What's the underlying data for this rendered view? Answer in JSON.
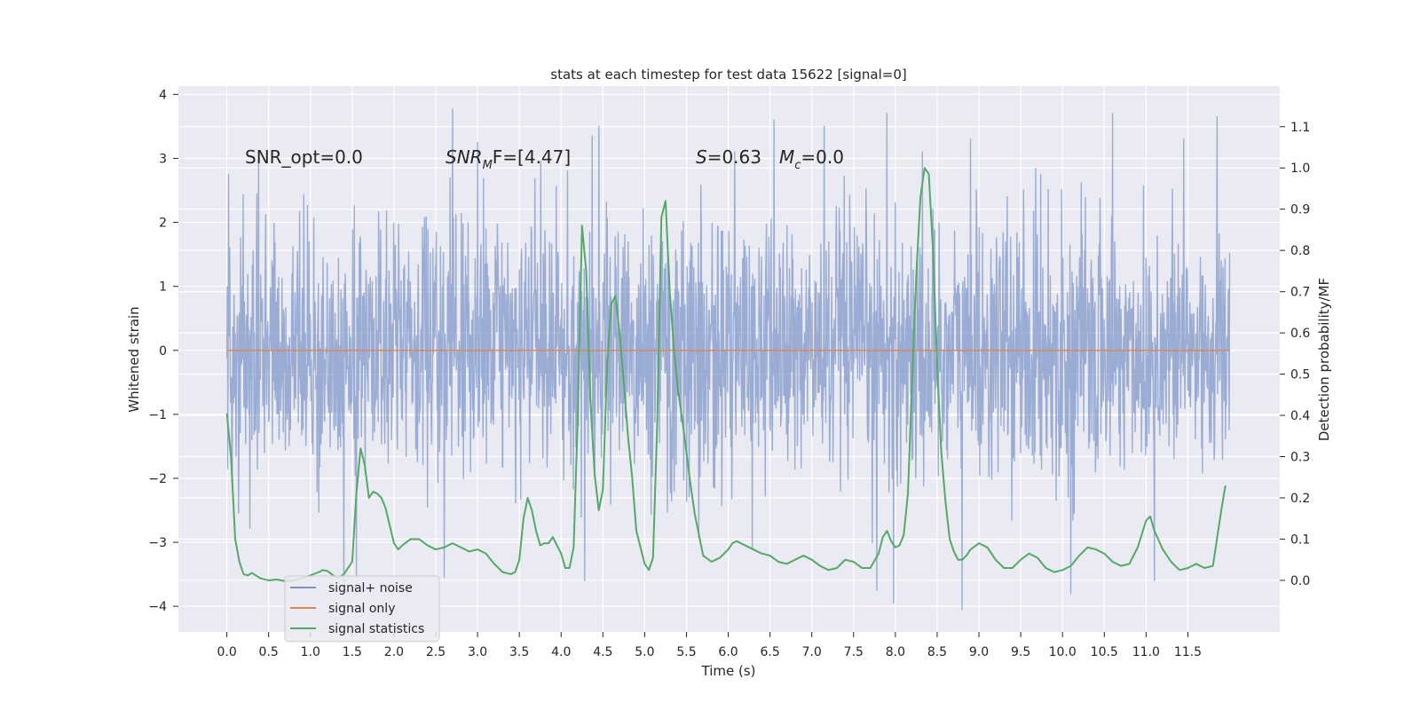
{
  "chart_data": {
    "type": "line",
    "title": "stats at each timestep for test data 15622 [signal=0]",
    "xlabel": "Time (s)",
    "ylabel": "Whitened strain",
    "y2label": "Detection probability/MF",
    "xlim": [
      -0.58,
      12.6
    ],
    "ylim": [
      -4.4,
      4.13
    ],
    "y2lim": [
      -0.125,
      1.1985
    ],
    "xticks": [
      "0.0",
      "0.5",
      "1.0",
      "1.5",
      "2.0",
      "2.5",
      "3.0",
      "3.5",
      "4.0",
      "4.5",
      "5.0",
      "5.5",
      "6.0",
      "6.5",
      "7.0",
      "7.5",
      "8.0",
      "8.5",
      "9.0",
      "9.5",
      "10.0",
      "10.5",
      "11.0",
      "11.5"
    ],
    "yticks": [
      "4",
      "3",
      "2",
      "1",
      "0",
      "−1",
      "−2",
      "−3",
      "−4"
    ],
    "y2ticks": [
      "1.1",
      "1.0",
      "0.9",
      "0.8",
      "0.7",
      "0.6",
      "0.5",
      "0.4",
      "0.3",
      "0.2",
      "0.1",
      "0.0"
    ],
    "grid": true,
    "legend_position": "lower-left",
    "annotations": {
      "snr_opt": "SNR_opt=0.0",
      "snr_mf_base": "SNR",
      "snr_mf_sub": "M",
      "snr_mf_rest": "F=[4.47]",
      "s_label": "S",
      "s_value": "=0.63",
      "mc_label": "M",
      "mc_sub": "c",
      "mc_value": "=0.0"
    },
    "series": [
      {
        "name": "signal+ noise",
        "color": "#7b94c6",
        "axis": "left",
        "style": "dense noise",
        "duration_s": 12.0,
        "notable_extremes": [
          {
            "t": 0.02,
            "v": 2.75
          },
          {
            "t": 0.38,
            "v": 2.95
          },
          {
            "t": 2.7,
            "v": 3.77
          },
          {
            "t": 3.0,
            "v": 3.25
          },
          {
            "t": 4.37,
            "v": 3.35
          },
          {
            "t": 4.45,
            "v": 3.5
          },
          {
            "t": 6.55,
            "v": 3.6
          },
          {
            "t": 7.15,
            "v": 3.5
          },
          {
            "t": 7.9,
            "v": 3.7
          },
          {
            "t": 8.9,
            "v": 3.3
          },
          {
            "t": 10.6,
            "v": 3.7
          },
          {
            "t": 11.45,
            "v": 3.3
          },
          {
            "t": 11.85,
            "v": 3.65
          },
          {
            "t": 1.4,
            "v": -3.7
          },
          {
            "t": 1.55,
            "v": -3.55
          },
          {
            "t": 2.6,
            "v": -3.55
          },
          {
            "t": 4.28,
            "v": -3.6
          },
          {
            "t": 7.78,
            "v": -3.75
          },
          {
            "t": 7.98,
            "v": -3.95
          },
          {
            "t": 8.8,
            "v": -4.05
          },
          {
            "t": 10.1,
            "v": -3.8
          },
          {
            "t": 11.1,
            "v": -3.6
          }
        ]
      },
      {
        "name": "signal only",
        "color": "#dd8452",
        "axis": "left",
        "x": [
          0.0,
          12.0
        ],
        "values": [
          0.0,
          0.0
        ]
      },
      {
        "name": "signal statistics",
        "color": "#55a868",
        "axis": "right",
        "x": [
          0.0,
          0.05,
          0.1,
          0.15,
          0.2,
          0.25,
          0.3,
          0.4,
          0.5,
          0.6,
          0.7,
          0.8,
          0.9,
          1.0,
          1.1,
          1.15,
          1.2,
          1.3,
          1.35,
          1.4,
          1.5,
          1.55,
          1.6,
          1.65,
          1.7,
          1.75,
          1.8,
          1.85,
          1.9,
          2.0,
          2.05,
          2.1,
          2.2,
          2.3,
          2.4,
          2.5,
          2.6,
          2.7,
          2.8,
          2.9,
          3.0,
          3.1,
          3.2,
          3.3,
          3.4,
          3.45,
          3.5,
          3.55,
          3.6,
          3.65,
          3.7,
          3.75,
          3.8,
          3.85,
          3.9,
          4.0,
          4.05,
          4.1,
          4.15,
          4.2,
          4.25,
          4.3,
          4.35,
          4.4,
          4.45,
          4.5,
          4.55,
          4.6,
          4.65,
          4.7,
          4.75,
          4.8,
          4.85,
          4.9,
          5.0,
          5.05,
          5.1,
          5.15,
          5.2,
          5.25,
          5.3,
          5.35,
          5.4,
          5.45,
          5.5,
          5.55,
          5.6,
          5.7,
          5.8,
          5.9,
          6.0,
          6.05,
          6.1,
          6.2,
          6.3,
          6.4,
          6.5,
          6.6,
          6.7,
          6.8,
          6.9,
          7.0,
          7.1,
          7.2,
          7.3,
          7.4,
          7.5,
          7.6,
          7.7,
          7.8,
          7.85,
          7.9,
          7.95,
          8.0,
          8.05,
          8.1,
          8.15,
          8.2,
          8.25,
          8.3,
          8.35,
          8.4,
          8.45,
          8.5,
          8.55,
          8.6,
          8.65,
          8.7,
          8.75,
          8.8,
          8.85,
          8.9,
          9.0,
          9.1,
          9.2,
          9.3,
          9.4,
          9.5,
          9.6,
          9.7,
          9.8,
          9.9,
          10.0,
          10.1,
          10.2,
          10.3,
          10.4,
          10.5,
          10.6,
          10.7,
          10.8,
          10.9,
          11.0,
          11.05,
          11.1,
          11.2,
          11.3,
          11.4,
          11.5,
          11.6,
          11.7,
          11.8,
          11.9,
          11.95
        ],
        "values": [
          0.405,
          0.3,
          0.1,
          0.045,
          0.015,
          0.012,
          0.018,
          0.005,
          0.0,
          0.002,
          -0.002,
          0.0,
          0.005,
          0.012,
          0.02,
          0.025,
          0.023,
          0.008,
          0.008,
          0.015,
          0.045,
          0.21,
          0.32,
          0.28,
          0.2,
          0.215,
          0.21,
          0.2,
          0.175,
          0.09,
          0.075,
          0.085,
          0.1,
          0.1,
          0.085,
          0.075,
          0.08,
          0.09,
          0.08,
          0.07,
          0.075,
          0.065,
          0.04,
          0.02,
          0.015,
          0.02,
          0.05,
          0.15,
          0.2,
          0.17,
          0.12,
          0.085,
          0.09,
          0.09,
          0.105,
          0.065,
          0.03,
          0.03,
          0.08,
          0.4,
          0.86,
          0.75,
          0.44,
          0.26,
          0.17,
          0.22,
          0.52,
          0.67,
          0.69,
          0.6,
          0.48,
          0.35,
          0.25,
          0.12,
          0.04,
          0.025,
          0.055,
          0.38,
          0.88,
          0.92,
          0.7,
          0.56,
          0.46,
          0.39,
          0.31,
          0.23,
          0.16,
          0.06,
          0.045,
          0.055,
          0.075,
          0.09,
          0.095,
          0.085,
          0.075,
          0.065,
          0.06,
          0.045,
          0.04,
          0.05,
          0.06,
          0.05,
          0.035,
          0.025,
          0.03,
          0.05,
          0.045,
          0.03,
          0.03,
          0.065,
          0.105,
          0.12,
          0.095,
          0.08,
          0.085,
          0.11,
          0.21,
          0.48,
          0.74,
          0.93,
          1.0,
          0.985,
          0.8,
          0.52,
          0.31,
          0.19,
          0.1,
          0.07,
          0.05,
          0.05,
          0.06,
          0.075,
          0.09,
          0.08,
          0.05,
          0.03,
          0.03,
          0.05,
          0.065,
          0.055,
          0.03,
          0.02,
          0.025,
          0.035,
          0.06,
          0.08,
          0.075,
          0.065,
          0.045,
          0.035,
          0.04,
          0.08,
          0.145,
          0.155,
          0.12,
          0.075,
          0.045,
          0.025,
          0.03,
          0.04,
          0.03,
          0.035,
          0.17,
          0.23
        ]
      }
    ]
  }
}
